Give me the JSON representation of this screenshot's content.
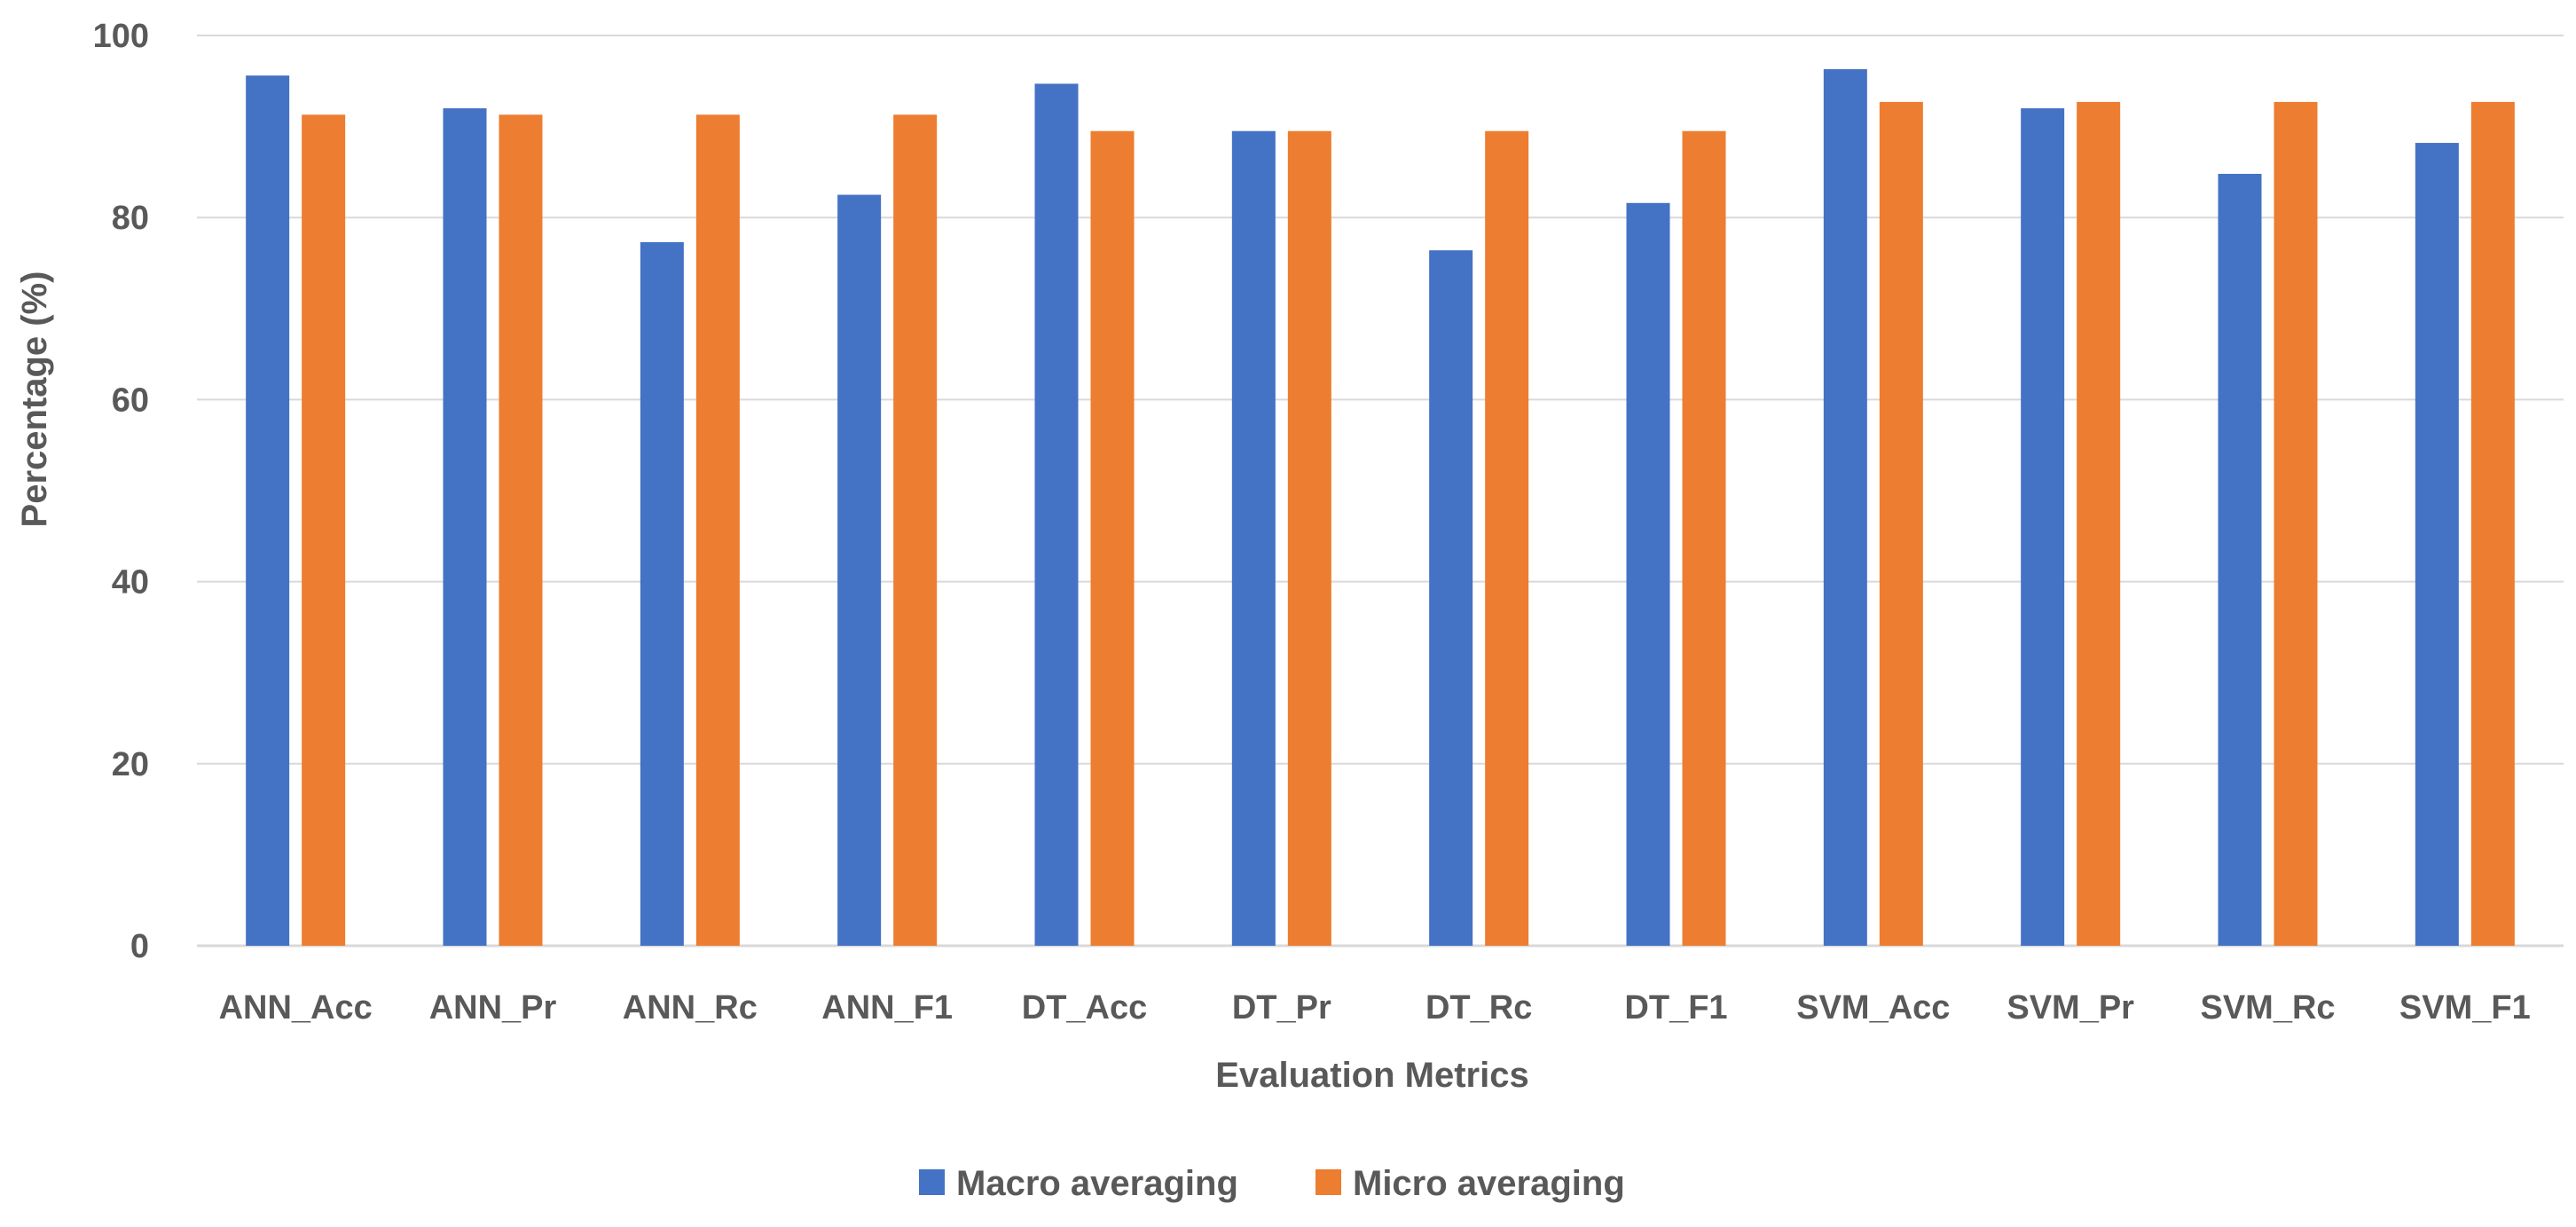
{
  "chart_data": {
    "type": "bar",
    "title": "",
    "xlabel": "Evaluation Metrics",
    "ylabel": "Percentage (%)",
    "ylim": [
      0,
      100
    ],
    "yticks": [
      0,
      20,
      40,
      60,
      80,
      100
    ],
    "grid": true,
    "legend_position": "bottom",
    "categories": [
      "ANN_Acc",
      "ANN_Pr",
      "ANN_Rc",
      "ANN_F1",
      "DT_Acc",
      "DT_Pr",
      "DT_Rc",
      "DT_F1",
      "SVM_Acc",
      "SVM_Pr",
      "SVM_Rc",
      "SVM_F1"
    ],
    "series": [
      {
        "name": "Macro averaging",
        "color": "#4472C4",
        "values": [
          95.6,
          92.0,
          77.3,
          82.5,
          94.7,
          89.5,
          76.4,
          81.6,
          96.3,
          92.0,
          84.8,
          88.2
        ]
      },
      {
        "name": "Micro averaging",
        "color": "#ED7D31",
        "values": [
          91.3,
          91.3,
          91.3,
          91.3,
          89.5,
          89.5,
          89.5,
          89.5,
          92.7,
          92.7,
          92.7,
          92.7
        ]
      }
    ]
  }
}
